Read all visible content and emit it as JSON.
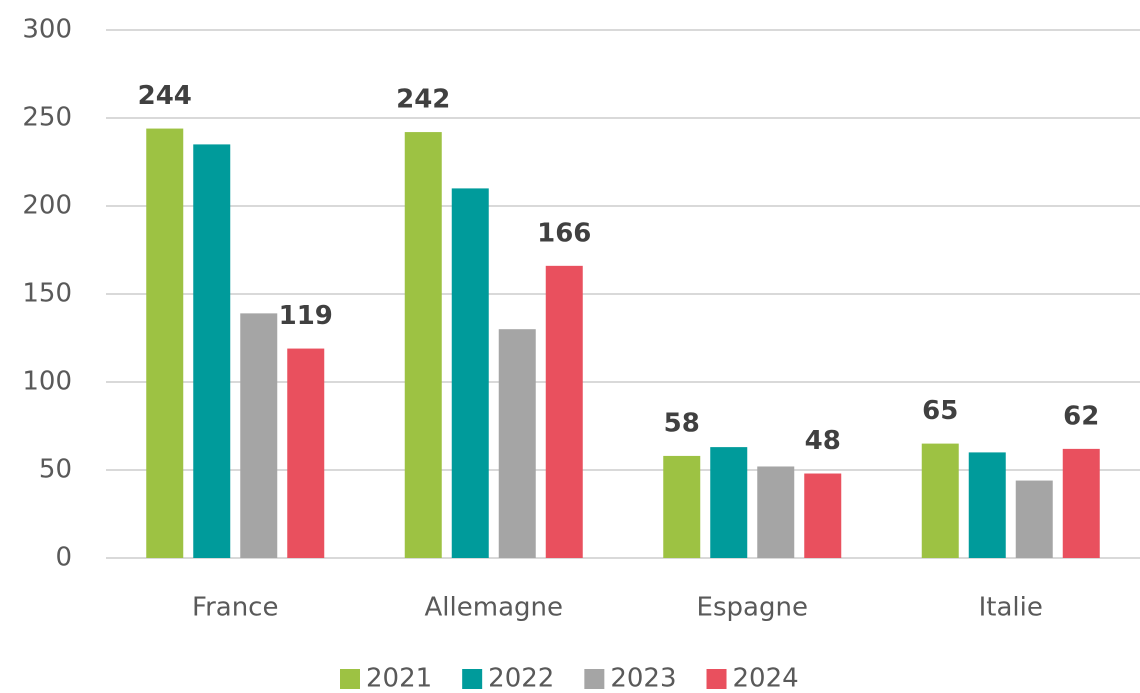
{
  "chart_data": {
    "type": "bar",
    "categories": [
      "France",
      "Allemagne",
      "Espagne",
      "Italie"
    ],
    "series": [
      {
        "name": "2021",
        "color": "#9dc243",
        "values": [
          244,
          242,
          58,
          65
        ],
        "data_labels": true
      },
      {
        "name": "2022",
        "color": "#009b9b",
        "values": [
          235,
          210,
          63,
          60
        ],
        "data_labels": false
      },
      {
        "name": "2023",
        "color": "#a5a5a5",
        "values": [
          139,
          130,
          52,
          44
        ],
        "data_labels": false
      },
      {
        "name": "2024",
        "color": "#e9505e",
        "values": [
          119,
          166,
          48,
          62
        ],
        "data_labels": true
      }
    ],
    "ylim": [
      0,
      300
    ],
    "yticks": [
      0,
      50,
      100,
      150,
      200,
      250,
      300
    ],
    "grid": true,
    "legend": "bottom"
  }
}
